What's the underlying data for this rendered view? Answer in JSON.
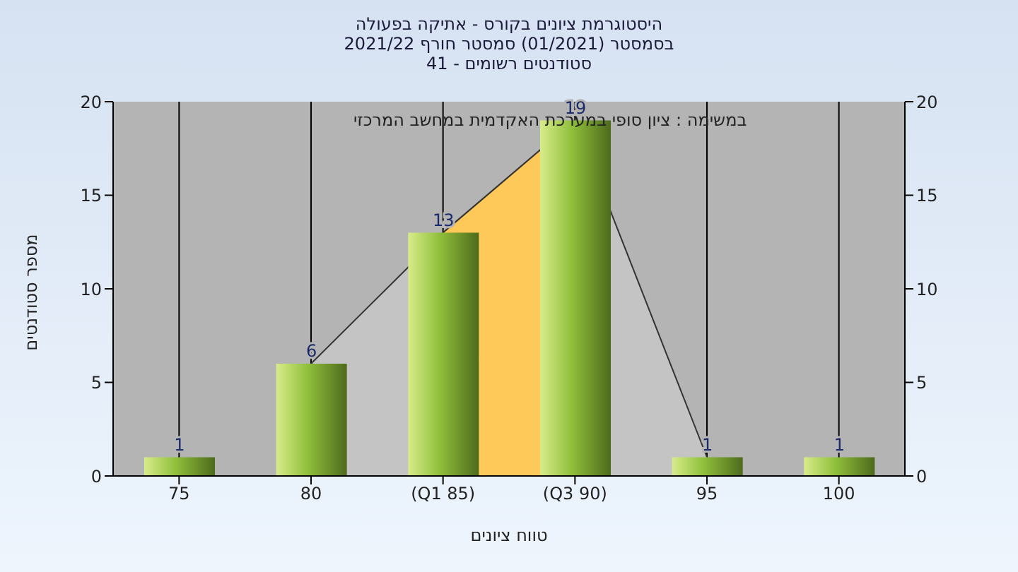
{
  "chart_data": {
    "type": "bar",
    "title": "היסטוגרמת ציונים בקורס - אתיקה בפעולה",
    "subtitle": "בסמסטר  (01/2021)  סמסטר חורף 2021/22\nסטודנטים רשומים - 41",
    "xlabel": "טווח ציונים",
    "ylabel": "מספר סטודנטים",
    "annotations": [
      "במשימה : ציון סופי במערכת האקדמית במחשב המרכזי"
    ],
    "categories": [
      "75",
      "80",
      "(Q1 85)",
      "(Q3 90)",
      "95",
      "100"
    ],
    "series": [
      {
        "type": "area",
        "color": "#c4c4c4",
        "values": [
          null,
          6,
          13,
          19,
          1,
          null
        ]
      },
      {
        "type": "area",
        "color": "#ffc95a",
        "values": [
          null,
          null,
          13,
          19,
          null,
          null
        ]
      },
      {
        "color": "#8fbf3a",
        "values": [
          1,
          6,
          13,
          19,
          1,
          1
        ],
        "value_labels": [
          "1",
          "6",
          "13",
          "19",
          "1",
          "1"
        ]
      }
    ],
    "ylim": [
      0,
      20
    ],
    "yticks": [
      0,
      5,
      10,
      15,
      20
    ],
    "y2lim": [
      0,
      20
    ],
    "y2ticks": [
      0,
      5,
      10,
      15,
      20
    ],
    "grid": "x"
  }
}
